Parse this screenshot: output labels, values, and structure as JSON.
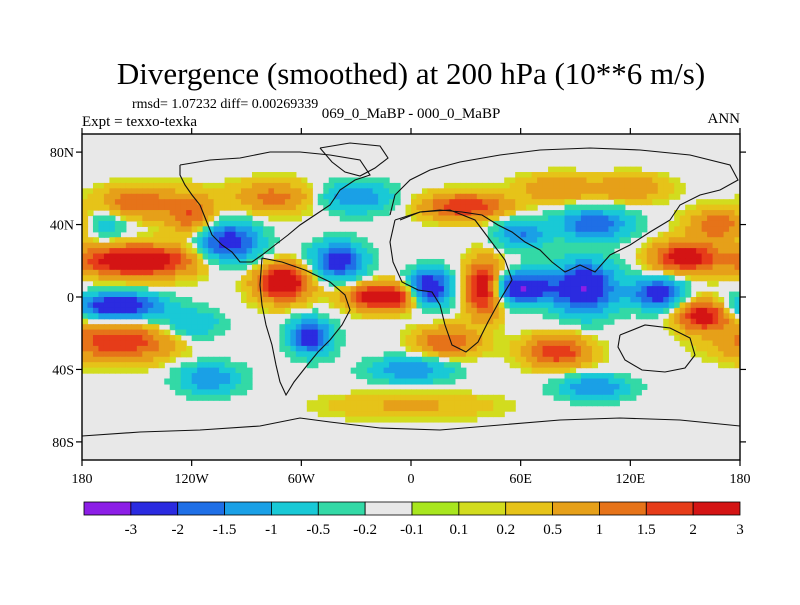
{
  "chart_data": {
    "type": "heatmap",
    "title": "Divergence (smoothed) at 200 hPa (10**6 m/s)",
    "stats_text": "rmsd= 1.07232 diff= 0.00269339",
    "left_label": "Expt = texxo-texka",
    "center_label": "069_0_MaBP - 000_0_MaBP",
    "right_label": "ANN",
    "x_axis": {
      "range": [
        -180,
        180
      ],
      "ticks": [
        -180,
        -120,
        -60,
        0,
        60,
        120,
        180
      ],
      "tick_labels": [
        "180",
        "120W",
        "60W",
        "0",
        "60E",
        "120E",
        "180"
      ]
    },
    "y_axis": {
      "range": [
        -90,
        90
      ],
      "ticks": [
        80,
        40,
        0,
        -40,
        -80
      ],
      "tick_labels": [
        "80N",
        "40N",
        "0",
        "40S",
        "80S"
      ]
    },
    "colorbar": {
      "colors": [
        "#8c1ee6",
        "#2b2be0",
        "#1f6fe6",
        "#1aa0e6",
        "#19c9d6",
        "#33d9a6",
        "#e8e8e8",
        "#a8e61e",
        "#d2dc1e",
        "#e6c319",
        "#e6a019",
        "#e67319",
        "#e63c19",
        "#d41414"
      ],
      "tick_labels": [
        "-3",
        "-2",
        "-1.5",
        "-1",
        "-0.5",
        "-0.2",
        "-0.1",
        "0.1",
        "0.2",
        "0.5",
        "1",
        "1.5",
        "2",
        "3"
      ]
    },
    "features": [
      {
        "lon": -150,
        "lat": 20,
        "value": 3,
        "sx": 22,
        "sy": 6
      },
      {
        "lon": -160,
        "lat": -5,
        "value": -3,
        "sx": 16,
        "sy": 5
      },
      {
        "lon": -160,
        "lat": -25,
        "value": 2,
        "sx": 20,
        "sy": 7
      },
      {
        "lon": -150,
        "lat": 52,
        "value": 1.5,
        "sx": 14,
        "sy": 6
      },
      {
        "lon": -120,
        "lat": 45,
        "value": 1.5,
        "sx": 9,
        "sy": 8
      },
      {
        "lon": -100,
        "lat": 30,
        "value": -2.5,
        "sx": 12,
        "sy": 8
      },
      {
        "lon": -75,
        "lat": 55,
        "value": 1.2,
        "sx": 16,
        "sy": 6
      },
      {
        "lon": -70,
        "lat": 8,
        "value": 3,
        "sx": 10,
        "sy": 7
      },
      {
        "lon": -55,
        "lat": -22,
        "value": -2.5,
        "sx": 8,
        "sy": 7
      },
      {
        "lon": -40,
        "lat": 20,
        "value": -2.5,
        "sx": 10,
        "sy": 7
      },
      {
        "lon": -15,
        "lat": 0,
        "value": 3,
        "sx": 13,
        "sy": 5
      },
      {
        "lon": 10,
        "lat": 5,
        "value": -3,
        "sx": 8,
        "sy": 7
      },
      {
        "lon": 40,
        "lat": 5,
        "value": 3,
        "sx": 7,
        "sy": 10
      },
      {
        "lon": 60,
        "lat": 5,
        "value": -3,
        "sx": 12,
        "sy": 6
      },
      {
        "lon": 95,
        "lat": 5,
        "value": -3,
        "sx": 12,
        "sy": 10
      },
      {
        "lon": 135,
        "lat": 2,
        "value": -2.5,
        "sx": 10,
        "sy": 6
      },
      {
        "lon": 150,
        "lat": 22,
        "value": 2.5,
        "sx": 12,
        "sy": 6
      },
      {
        "lon": 160,
        "lat": -10,
        "value": 2.5,
        "sx": 10,
        "sy": 6
      },
      {
        "lon": 30,
        "lat": 50,
        "value": 2,
        "sx": 16,
        "sy": 5
      },
      {
        "lon": 100,
        "lat": 40,
        "value": -2,
        "sx": 14,
        "sy": 6
      },
      {
        "lon": 20,
        "lat": -25,
        "value": 1.5,
        "sx": 12,
        "sy": 6
      },
      {
        "lon": 80,
        "lat": -30,
        "value": 2,
        "sx": 12,
        "sy": 6
      },
      {
        "lon": 0,
        "lat": -40,
        "value": -1.5,
        "sx": 16,
        "sy": 5
      },
      {
        "lon": 100,
        "lat": -50,
        "value": -1.5,
        "sx": 14,
        "sy": 5
      },
      {
        "lon": -110,
        "lat": -45,
        "value": -1.5,
        "sx": 12,
        "sy": 6
      },
      {
        "lon": 170,
        "lat": 40,
        "value": 1.5,
        "sx": 12,
        "sy": 6
      },
      {
        "lon": -30,
        "lat": 55,
        "value": -1.5,
        "sx": 14,
        "sy": 6
      },
      {
        "lon": 60,
        "lat": 35,
        "value": -1.5,
        "sx": 10,
        "sy": 6
      },
      {
        "lon": 120,
        "lat": 60,
        "value": 1,
        "sx": 14,
        "sy": 5
      },
      {
        "lon": -120,
        "lat": -15,
        "value": -1,
        "sx": 12,
        "sy": 6
      },
      {
        "lon": 0,
        "lat": -60,
        "value": 0.6,
        "sx": 30,
        "sy": 5
      },
      {
        "lon": 80,
        "lat": 60,
        "value": 1,
        "sx": 14,
        "sy": 5
      },
      {
        "lon": -170,
        "lat": 40,
        "value": -1,
        "sx": 10,
        "sy": 6
      }
    ]
  }
}
